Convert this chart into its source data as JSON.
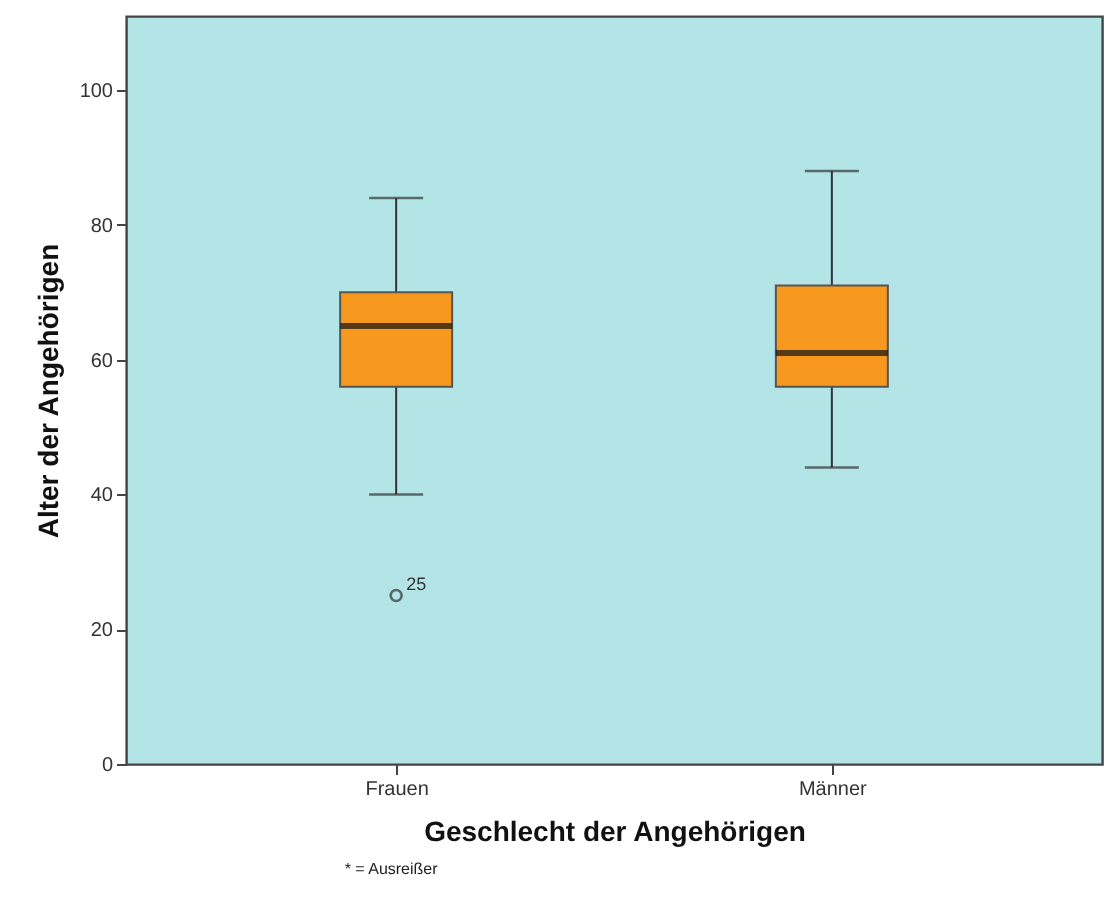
{
  "chart_data": {
    "type": "box",
    "xlabel": "Geschlecht der Angehörigen",
    "ylabel": "Alter der Angehörigen",
    "categories": [
      "Frauen",
      "Männer"
    ],
    "boxes": [
      {
        "low": 40,
        "q1": 56,
        "median": 65,
        "q3": 70,
        "high": 84,
        "outliers": [
          25
        ]
      },
      {
        "low": 44,
        "q1": 56,
        "median": 61,
        "q3": 71,
        "high": 88
      }
    ],
    "colors": [
      "#f7991f",
      "#f7991f"
    ],
    "ylim": [
      0,
      111
    ],
    "yticks": [
      0,
      20,
      40,
      60,
      80,
      100
    ],
    "grid": false,
    "annotations": [
      "25",
      "* = Ausreißer"
    ]
  }
}
